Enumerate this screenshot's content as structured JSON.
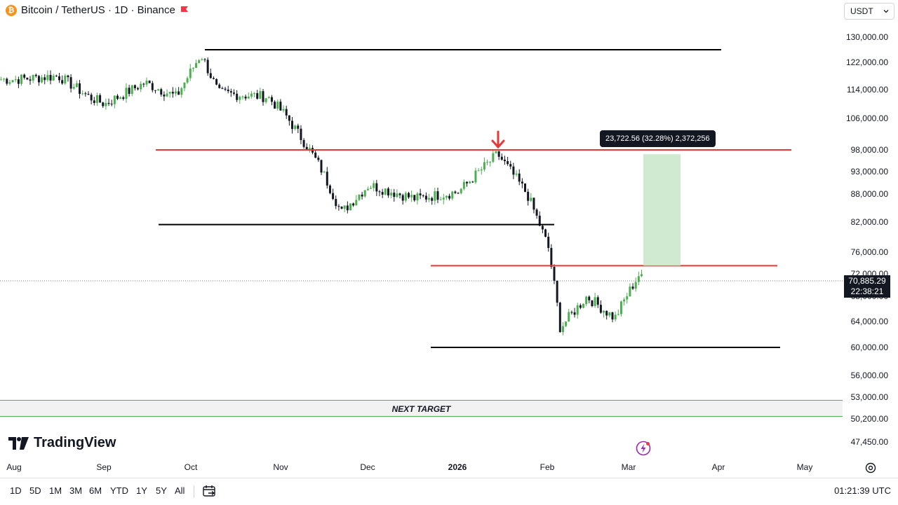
{
  "header": {
    "symbol_text": "Bitcoin / TetherUS · 1D · Binance",
    "logo_glyph": "₿",
    "currency": "USDT"
  },
  "price_axis": {
    "labels": [
      "130,000.00",
      "122,000.00",
      "114,000.00",
      "106,000.00",
      "98,000.00",
      "93,000.00",
      "88,000.00",
      "82,000.00",
      "76,000.00",
      "72,000.00",
      "68,000.00",
      "64,000.00",
      "60,000.00",
      "56,000.00",
      "53,000.00",
      "50,200.00",
      "47,450.00"
    ],
    "current_price": "70,885.29",
    "countdown": "22:38:21"
  },
  "time_axis": {
    "labels": [
      "Aug",
      "Sep",
      "Oct",
      "Nov",
      "Dec",
      "2026",
      "Feb",
      "Mar",
      "Apr",
      "May"
    ]
  },
  "annotations": {
    "measure_label": "23,722.56 (32.28%) 2,372,256",
    "next_target_label": "NEXT TARGET",
    "levels": [
      {
        "price": 126000,
        "color": "#000000"
      },
      {
        "price": 98000,
        "color": "#e53935"
      },
      {
        "price": 81500,
        "color": "#000000"
      },
      {
        "price": 73500,
        "color": "#e53935"
      },
      {
        "price": 60000,
        "color": "#000000"
      }
    ],
    "target_zone": {
      "from": 73500,
      "to": 97000
    }
  },
  "branding": {
    "logo_mark": "17",
    "logo_text": "TradingView"
  },
  "toolbar": {
    "ranges": [
      "1D",
      "5D",
      "1M",
      "3M",
      "6M",
      "YTD",
      "1Y",
      "5Y",
      "All"
    ],
    "clock": "01:21:39 UTC"
  },
  "colors": {
    "up": "#4caf50",
    "down": "#131722",
    "resistance": "#e53935",
    "support": "#000000",
    "target_fill": "#c8e6c9"
  },
  "chart_data": {
    "type": "candlestick",
    "symbol": "BTC/USDT",
    "interval": "1D",
    "x": [
      "Aug",
      "Sep",
      "Oct",
      "Nov",
      "Dec",
      "2026",
      "Feb",
      "Mar"
    ],
    "close_path": [
      {
        "t": "Aug",
        "v": 117000
      },
      {
        "t": "mid-Aug",
        "v": 118000
      },
      {
        "t": "late-Aug",
        "v": 112000
      },
      {
        "t": "Sep",
        "v": 110000
      },
      {
        "t": "mid-Sep",
        "v": 116000
      },
      {
        "t": "late-Sep",
        "v": 112000
      },
      {
        "t": "Oct",
        "v": 124500
      },
      {
        "t": "Oct-10",
        "v": 113000
      },
      {
        "t": "late-Oct",
        "v": 112000
      },
      {
        "t": "Nov",
        "v": 107000
      },
      {
        "t": "mid-Nov",
        "v": 94000
      },
      {
        "t": "Nov-21",
        "v": 84000
      },
      {
        "t": "Dec",
        "v": 90000
      },
      {
        "t": "mid-Dec",
        "v": 87000
      },
      {
        "t": "2026",
        "v": 88500
      },
      {
        "t": "Jan-14",
        "v": 97000
      },
      {
        "t": "late-Jan",
        "v": 88000
      },
      {
        "t": "Feb",
        "v": 77000
      },
      {
        "t": "Feb-05",
        "v": 63000
      },
      {
        "t": "mid-Feb",
        "v": 68000
      },
      {
        "t": "late-Feb",
        "v": 64500
      },
      {
        "t": "Mar",
        "v": 72000
      },
      {
        "t": "Mar-last",
        "v": 70885
      }
    ],
    "ylim": [
      45000,
      134000
    ]
  }
}
